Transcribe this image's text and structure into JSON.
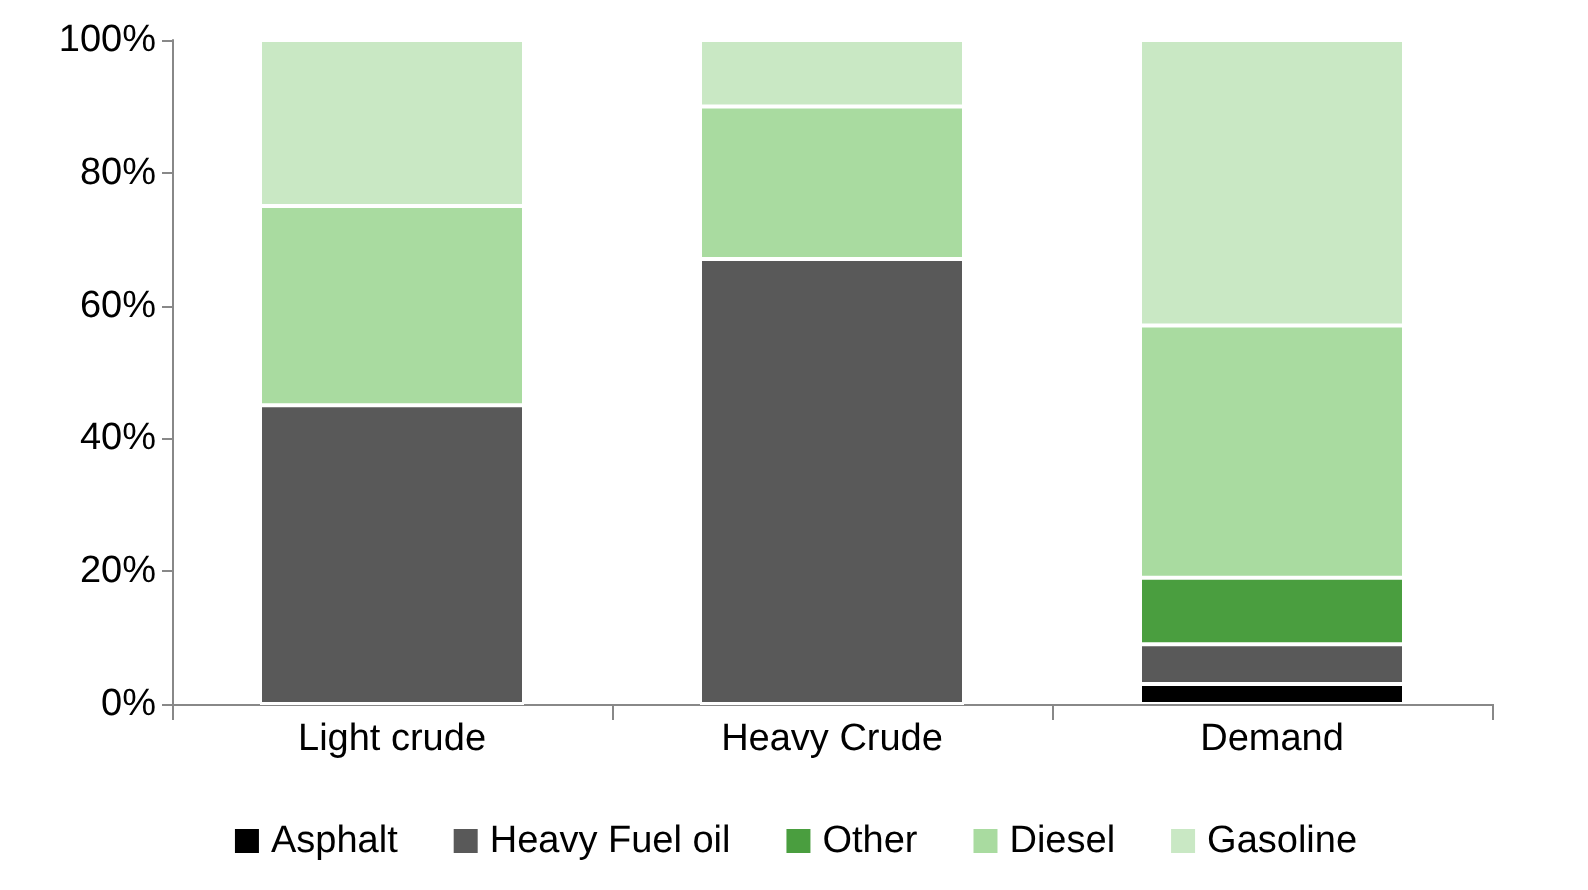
{
  "chart_data": {
    "type": "bar",
    "stacked": true,
    "categories": [
      "Light crude",
      "Heavy Crude",
      "Demand"
    ],
    "series": [
      {
        "name": "Asphalt",
        "color": "#000000",
        "values": [
          0,
          0,
          3
        ]
      },
      {
        "name": "Heavy Fuel oil",
        "color": "#595959",
        "values": [
          45,
          67,
          6
        ]
      },
      {
        "name": "Other",
        "color": "#4a9e3f",
        "values": [
          0,
          0,
          10
        ]
      },
      {
        "name": "Diesel",
        "color": "#a9dba0",
        "values": [
          30,
          23,
          38
        ]
      },
      {
        "name": "Gasoline",
        "color": "#c9e8c4",
        "values": [
          25,
          10,
          43
        ]
      }
    ],
    "ylim": [
      0,
      100
    ],
    "yticks": [
      {
        "value": 0,
        "label": "0%"
      },
      {
        "value": 20,
        "label": "20%"
      },
      {
        "value": 40,
        "label": "40%"
      },
      {
        "value": 60,
        "label": "60%"
      },
      {
        "value": 80,
        "label": "80%"
      },
      {
        "value": 100,
        "label": "100%"
      }
    ],
    "grid": false,
    "legend": "bottom"
  }
}
